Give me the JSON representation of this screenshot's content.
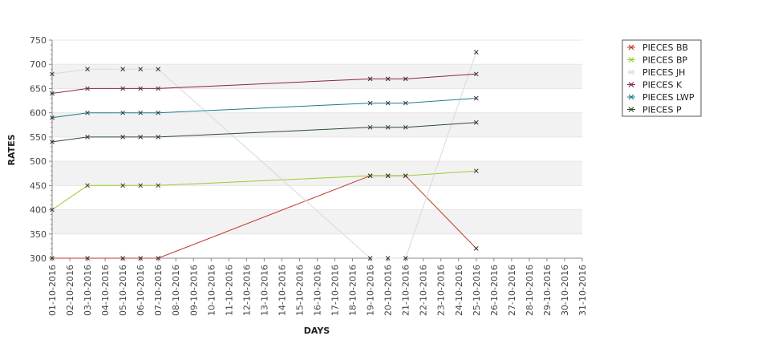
{
  "chart_data": {
    "type": "line",
    "xlabel": "DAYS",
    "ylabel": "RATES",
    "ylim": [
      300,
      750
    ],
    "yticks": [
      300,
      350,
      400,
      450,
      500,
      550,
      600,
      650,
      700,
      750
    ],
    "xlim": [
      "2016-10-01",
      "2016-10-31"
    ],
    "grid": "alternating horizontal bands",
    "legend_position": "top-right",
    "x_tick_labels": [
      "01-10-2016",
      "02-10-2016",
      "03-10-2016",
      "04-10-2016",
      "05-10-2016",
      "06-10-2016",
      "07-10-2016",
      "08-10-2016",
      "09-10-2016",
      "10-10-2016",
      "11-10-2016",
      "12-10-2016",
      "13-10-2016",
      "14-10-2016",
      "15-10-2016",
      "16-10-2016",
      "17-10-2016",
      "18-10-2016",
      "19-10-2016",
      "20-10-2016",
      "21-10-2016",
      "22-10-2016",
      "23-10-2016",
      "24-10-2016",
      "25-10-2016",
      "26-10-2016",
      "27-10-2016",
      "28-10-2016",
      "29-10-2016",
      "30-10-2016",
      "31-10-2016"
    ],
    "series": [
      {
        "name": "PIECES BB",
        "color": "#c0392b",
        "points": [
          {
            "x": "2016-10-01",
            "y": 300
          },
          {
            "x": "2016-10-03",
            "y": 300
          },
          {
            "x": "2016-10-05",
            "y": 300
          },
          {
            "x": "2016-10-06",
            "y": 300
          },
          {
            "x": "2016-10-07",
            "y": 300
          },
          {
            "x": "2016-10-19",
            "y": 470
          },
          {
            "x": "2016-10-20",
            "y": 470
          },
          {
            "x": "2016-10-21",
            "y": 470
          },
          {
            "x": "2016-10-25",
            "y": 320
          }
        ]
      },
      {
        "name": "PIECES BP",
        "color": "#9acd32",
        "points": [
          {
            "x": "2016-10-01",
            "y": 400
          },
          {
            "x": "2016-10-03",
            "y": 450
          },
          {
            "x": "2016-10-05",
            "y": 450
          },
          {
            "x": "2016-10-06",
            "y": 450
          },
          {
            "x": "2016-10-07",
            "y": 450
          },
          {
            "x": "2016-10-19",
            "y": 470
          },
          {
            "x": "2016-10-20",
            "y": 470
          },
          {
            "x": "2016-10-21",
            "y": 470
          },
          {
            "x": "2016-10-25",
            "y": 480
          }
        ]
      },
      {
        "name": "PIECES JH",
        "color": "#d9d9d9",
        "points": [
          {
            "x": "2016-10-01",
            "y": 680
          },
          {
            "x": "2016-10-03",
            "y": 690
          },
          {
            "x": "2016-10-05",
            "y": 690
          },
          {
            "x": "2016-10-06",
            "y": 690
          },
          {
            "x": "2016-10-07",
            "y": 690
          },
          {
            "x": "2016-10-19",
            "y": 300
          },
          {
            "x": "2016-10-20",
            "y": 300
          },
          {
            "x": "2016-10-21",
            "y": 300
          },
          {
            "x": "2016-10-25",
            "y": 725
          }
        ]
      },
      {
        "name": "PIECES K",
        "color": "#8b2252",
        "points": [
          {
            "x": "2016-10-01",
            "y": 640
          },
          {
            "x": "2016-10-03",
            "y": 650
          },
          {
            "x": "2016-10-05",
            "y": 650
          },
          {
            "x": "2016-10-06",
            "y": 650
          },
          {
            "x": "2016-10-07",
            "y": 650
          },
          {
            "x": "2016-10-19",
            "y": 670
          },
          {
            "x": "2016-10-20",
            "y": 670
          },
          {
            "x": "2016-10-21",
            "y": 670
          },
          {
            "x": "2016-10-25",
            "y": 680
          }
        ]
      },
      {
        "name": "PIECES LWP",
        "color": "#1f7a8c",
        "points": [
          {
            "x": "2016-10-01",
            "y": 590
          },
          {
            "x": "2016-10-03",
            "y": 600
          },
          {
            "x": "2016-10-05",
            "y": 600
          },
          {
            "x": "2016-10-06",
            "y": 600
          },
          {
            "x": "2016-10-07",
            "y": 600
          },
          {
            "x": "2016-10-19",
            "y": 620
          },
          {
            "x": "2016-10-20",
            "y": 620
          },
          {
            "x": "2016-10-21",
            "y": 620
          },
          {
            "x": "2016-10-25",
            "y": 630
          }
        ]
      },
      {
        "name": "PIECES P",
        "color": "#2e4e2e",
        "points": [
          {
            "x": "2016-10-01",
            "y": 540
          },
          {
            "x": "2016-10-03",
            "y": 550
          },
          {
            "x": "2016-10-05",
            "y": 550
          },
          {
            "x": "2016-10-06",
            "y": 550
          },
          {
            "x": "2016-10-07",
            "y": 550
          },
          {
            "x": "2016-10-19",
            "y": 570
          },
          {
            "x": "2016-10-20",
            "y": 570
          },
          {
            "x": "2016-10-21",
            "y": 570
          },
          {
            "x": "2016-10-25",
            "y": 580
          }
        ]
      }
    ]
  }
}
